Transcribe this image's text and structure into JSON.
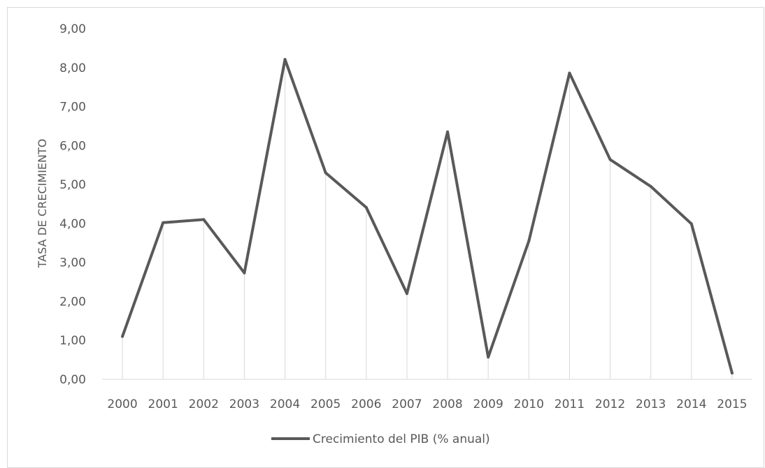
{
  "chart_data": {
    "type": "line",
    "title": "",
    "xlabel": "",
    "ylabel": "TASA DE CRECIMIENTO",
    "ylim": [
      0,
      9
    ],
    "yticks": [
      "0,00",
      "1,00",
      "2,00",
      "3,00",
      "4,00",
      "5,00",
      "6,00",
      "7,00",
      "8,00",
      "9,00"
    ],
    "categories": [
      "2000",
      "2001",
      "2002",
      "2003",
      "2004",
      "2005",
      "2006",
      "2007",
      "2008",
      "2009",
      "2010",
      "2011",
      "2012",
      "2013",
      "2014",
      "2015"
    ],
    "series": [
      {
        "name": "Crecimiento del PIB (% anual)",
        "values": [
          1.1,
          4.02,
          4.1,
          2.73,
          8.21,
          5.3,
          4.41,
          2.2,
          6.35,
          0.57,
          3.55,
          7.86,
          5.64,
          4.95,
          3.99,
          0.16
        ],
        "color": "#595959"
      }
    ],
    "grid": false,
    "drop_lines": true,
    "legend_position": "bottom"
  }
}
